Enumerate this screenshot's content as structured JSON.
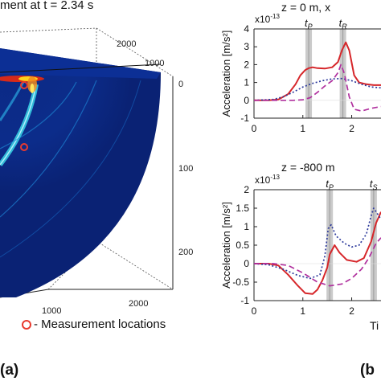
{
  "simulation": {
    "title": "ment at t = 2.34 s",
    "legend_label": "- Measurement locations",
    "marker_color": "#e83a2e",
    "axis_ticks": [
      "2000",
      "1000",
      "0",
      "1000",
      "2000",
      "1000",
      "2000"
    ],
    "panel_label": "(a)"
  },
  "panel_b_label": "(b",
  "chart_data": [
    {
      "type": "line",
      "title": "z = 0 m, x",
      "xlabel": "Ti",
      "ylabel": "Acceleration [m/s²]",
      "y_multiplier": "x10",
      "y_exponent": "-13",
      "xlim": [
        0,
        2.6
      ],
      "ylim": [
        -1,
        4
      ],
      "x_ticks": [
        0,
        1,
        2
      ],
      "y_ticks": [
        -1,
        0,
        1,
        2,
        3,
        4
      ],
      "phase_markers": [
        {
          "label": "t",
          "subscript": "P",
          "x": 1.12
        },
        {
          "label": "t",
          "subscript": "R",
          "x": 1.82
        }
      ],
      "series": [
        {
          "style": "solid",
          "color": "#d6262a",
          "points": [
            [
              0,
              0
            ],
            [
              0.3,
              0
            ],
            [
              0.5,
              0.05
            ],
            [
              0.7,
              0.35
            ],
            [
              0.85,
              0.9
            ],
            [
              0.95,
              1.4
            ],
            [
              1.05,
              1.7
            ],
            [
              1.12,
              1.8
            ],
            [
              1.2,
              1.85
            ],
            [
              1.3,
              1.8
            ],
            [
              1.45,
              1.78
            ],
            [
              1.6,
              1.85
            ],
            [
              1.72,
              2.15
            ],
            [
              1.8,
              2.8
            ],
            [
              1.88,
              3.25
            ],
            [
              1.95,
              2.8
            ],
            [
              2.05,
              1.4
            ],
            [
              2.15,
              1.0
            ],
            [
              2.3,
              0.9
            ],
            [
              2.45,
              0.85
            ],
            [
              2.6,
              0.85
            ]
          ]
        },
        {
          "style": "dotted",
          "color": "#2d3a9c",
          "points": [
            [
              0,
              0
            ],
            [
              0.4,
              0.05
            ],
            [
              0.6,
              0.2
            ],
            [
              0.8,
              0.45
            ],
            [
              1.0,
              0.75
            ],
            [
              1.2,
              0.95
            ],
            [
              1.4,
              1.1
            ],
            [
              1.6,
              1.2
            ],
            [
              1.8,
              1.22
            ],
            [
              2.0,
              1.1
            ],
            [
              2.2,
              0.9
            ],
            [
              2.4,
              0.75
            ],
            [
              2.6,
              0.7
            ]
          ]
        },
        {
          "style": "dashed",
          "color": "#b0309e",
          "points": [
            [
              0,
              0
            ],
            [
              0.5,
              0
            ],
            [
              0.8,
              0
            ],
            [
              1.0,
              0.03
            ],
            [
              1.15,
              0.15
            ],
            [
              1.3,
              0.45
            ],
            [
              1.45,
              0.8
            ],
            [
              1.6,
              1.1
            ],
            [
              1.72,
              1.55
            ],
            [
              1.78,
              2.0
            ],
            [
              1.85,
              1.5
            ],
            [
              1.95,
              0.2
            ],
            [
              2.05,
              -0.5
            ],
            [
              2.2,
              -0.6
            ],
            [
              2.4,
              -0.45
            ],
            [
              2.6,
              -0.35
            ]
          ]
        }
      ]
    },
    {
      "type": "line",
      "title": "z = -800 m",
      "xlabel": "Ti",
      "ylabel": "Acceleration [m/s²]",
      "y_multiplier": "x10",
      "y_exponent": "-13",
      "xlim": [
        0,
        2.6
      ],
      "ylim": [
        -1,
        2
      ],
      "x_ticks": [
        0,
        1,
        2
      ],
      "y_ticks": [
        -1,
        -0.5,
        0,
        0.5,
        1,
        1.5,
        2
      ],
      "phase_markers": [
        {
          "label": "t",
          "subscript": "P",
          "x": 1.55
        },
        {
          "label": "t",
          "subscript": "S",
          "x": 2.45
        }
      ],
      "series": [
        {
          "style": "solid",
          "color": "#d6262a",
          "points": [
            [
              0,
              0
            ],
            [
              0.3,
              0
            ],
            [
              0.5,
              -0.05
            ],
            [
              0.7,
              -0.3
            ],
            [
              0.9,
              -0.6
            ],
            [
              1.05,
              -0.8
            ],
            [
              1.2,
              -0.82
            ],
            [
              1.3,
              -0.7
            ],
            [
              1.4,
              -0.45
            ],
            [
              1.5,
              -0.1
            ],
            [
              1.55,
              0.25
            ],
            [
              1.65,
              0.5
            ],
            [
              1.75,
              0.3
            ],
            [
              1.9,
              0.1
            ],
            [
              2.1,
              0.05
            ],
            [
              2.25,
              0.15
            ],
            [
              2.4,
              0.6
            ],
            [
              2.5,
              1.1
            ],
            [
              2.6,
              1.4
            ]
          ]
        },
        {
          "style": "dotted",
          "color": "#2d3a9c",
          "points": [
            [
              0,
              0
            ],
            [
              0.3,
              -0.03
            ],
            [
              0.6,
              -0.15
            ],
            [
              0.9,
              -0.32
            ],
            [
              1.15,
              -0.4
            ],
            [
              1.35,
              -0.3
            ],
            [
              1.45,
              0.2
            ],
            [
              1.52,
              0.95
            ],
            [
              1.58,
              1.05
            ],
            [
              1.68,
              0.75
            ],
            [
              1.85,
              0.55
            ],
            [
              2.0,
              0.45
            ],
            [
              2.15,
              0.5
            ],
            [
              2.3,
              0.8
            ],
            [
              2.4,
              1.3
            ],
            [
              2.45,
              1.5
            ],
            [
              2.55,
              1.3
            ],
            [
              2.6,
              1.2
            ]
          ]
        },
        {
          "style": "dashed",
          "color": "#b0309e",
          "points": [
            [
              0,
              0
            ],
            [
              0.4,
              0
            ],
            [
              0.7,
              -0.05
            ],
            [
              1.0,
              -0.25
            ],
            [
              1.3,
              -0.5
            ],
            [
              1.55,
              -0.6
            ],
            [
              1.8,
              -0.55
            ],
            [
              2.0,
              -0.4
            ],
            [
              2.2,
              -0.15
            ],
            [
              2.35,
              0.15
            ],
            [
              2.5,
              0.55
            ],
            [
              2.6,
              0.7
            ]
          ]
        }
      ]
    }
  ]
}
